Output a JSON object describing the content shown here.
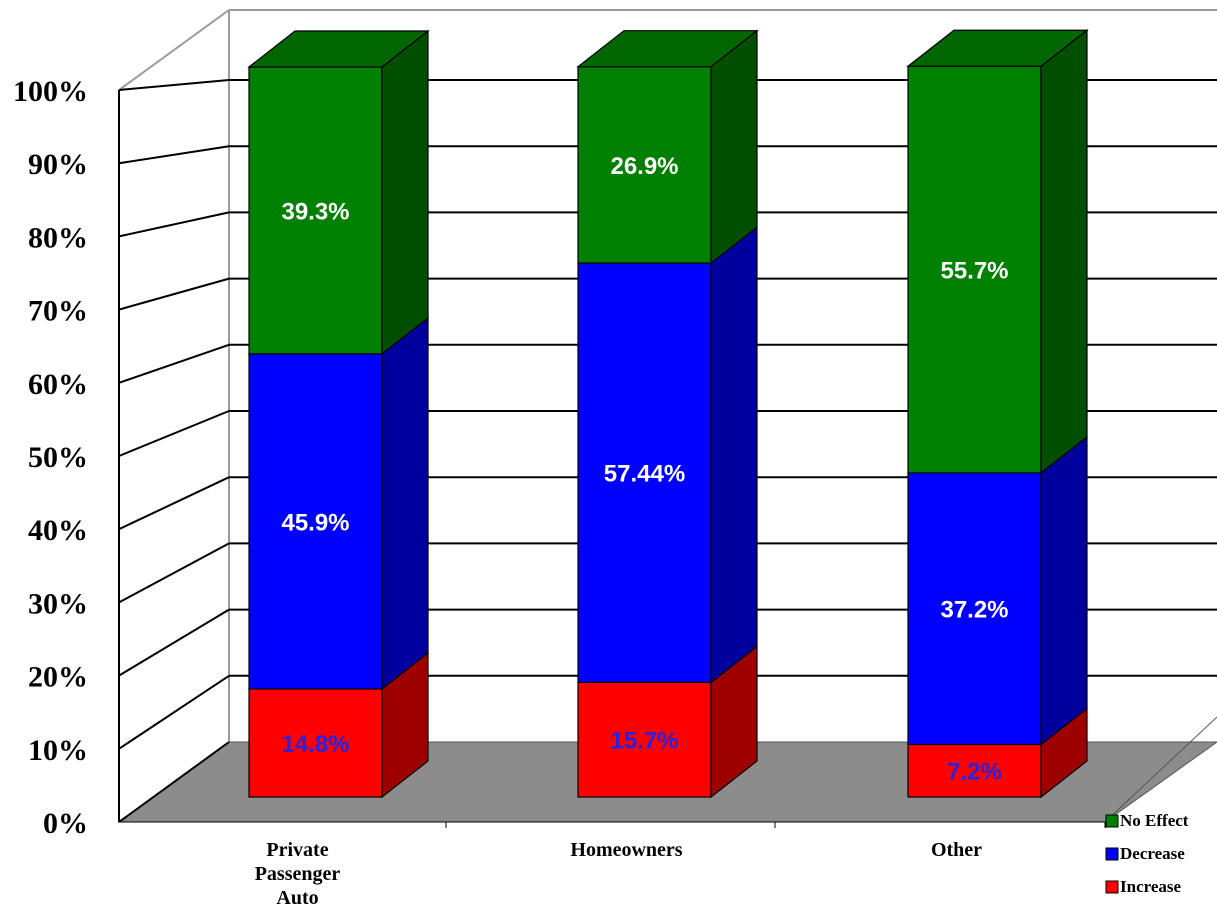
{
  "chart_data": {
    "type": "bar",
    "stacked": true,
    "three_d": true,
    "categories": [
      [
        "Private",
        "Passenger",
        "Auto"
      ],
      [
        "Homeowners"
      ],
      [
        "Other"
      ]
    ],
    "series": [
      {
        "name": "Increase",
        "values": [
          14.8,
          15.7,
          7.2
        ],
        "labels": [
          "14.8%",
          "15.7%",
          "7.2%"
        ],
        "color": "#ff0000",
        "label_color": "#2a22dd"
      },
      {
        "name": "Decrease",
        "values": [
          45.9,
          57.44,
          37.2
        ],
        "labels": [
          "45.9%",
          "57.44%",
          "37.2%"
        ],
        "color": "#0000ff",
        "label_color": "#ffffff"
      },
      {
        "name": "No Effect",
        "values": [
          39.3,
          26.9,
          55.7
        ],
        "labels": [
          "39.3%",
          "26.9%",
          "55.7%"
        ],
        "color": "#008000",
        "label_color": "#ffffff"
      }
    ],
    "yticks": [
      "0%",
      "10%",
      "20%",
      "30%",
      "40%",
      "50%",
      "60%",
      "70%",
      "80%",
      "90%",
      "100%"
    ],
    "ylim": [
      0,
      100
    ],
    "grid": true,
    "floor_color": "#8c8c8c",
    "legend": {
      "placement": "bottom-right",
      "order": [
        "No Effect",
        "Decrease",
        "Increase"
      ]
    }
  }
}
